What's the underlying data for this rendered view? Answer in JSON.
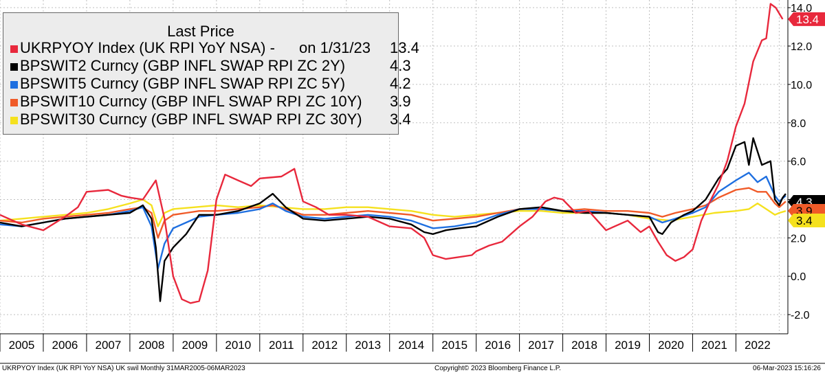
{
  "legend": {
    "header": "Last Price",
    "items": [
      {
        "label": "UKRPYOY Index (UK RPI YoY NSA) -",
        "date": "on 1/31/23",
        "value": "13.4",
        "color": "#e8283c"
      },
      {
        "label": "BPSWIT2 Curncy (GBP INFL SWAP RPI ZC 2Y)",
        "value": "4.3",
        "color": "#000000"
      },
      {
        "label": "BPSWIT5 Curncy (GBP INFL SWAP RPI ZC 5Y)",
        "value": "4.2",
        "color": "#1e6fe0"
      },
      {
        "label": "BPSWIT10 Curncy (GBP INFL SWAP RPI ZC 10Y)",
        "value": "3.9",
        "color": "#f05a28"
      },
      {
        "label": "BPSWIT30 Curncy (GBP INFL SWAP RPI ZC 30Y)",
        "value": "3.4",
        "color": "#f5e11e"
      }
    ]
  },
  "footer": {
    "left": "UKRPYOY Index (UK RPI YoY NSA) UK swil  Monthly 31MAR2005-06MAR2023",
    "center": "Copyright© 2023 Bloomberg Finance L.P.",
    "right": "06-Mar-2023 15:16:26"
  },
  "chart_data": {
    "type": "line",
    "xlim": [
      2005.0,
      2023.2
    ],
    "ylim": [
      -3.0,
      14.4
    ],
    "x_ticks": [
      "2005",
      "2006",
      "2007",
      "2008",
      "2009",
      "2010",
      "2011",
      "2012",
      "2013",
      "2014",
      "2015",
      "2016",
      "2017",
      "2018",
      "2019",
      "2020",
      "2021",
      "2022"
    ],
    "y_ticks": [
      "-2.0",
      "0.0",
      "2.0",
      "4.0",
      "6.0",
      "8.0",
      "10.0",
      "12.0",
      "14.0"
    ],
    "last_value_tags": [
      {
        "text": "13.4",
        "value": 13.4,
        "bg": "#e8283c",
        "fg": "#ffffff"
      },
      {
        "text": "4.3",
        "value": 4.3,
        "bg": "#000000",
        "fg": "#ffffff"
      },
      {
        "text": "3.9",
        "value": 3.9,
        "bg": "#f05a28",
        "fg": "#000000"
      },
      {
        "text": "3.4",
        "value": 3.4,
        "bg": "#f5e11e",
        "fg": "#000000"
      }
    ],
    "series": [
      {
        "name": "UKRPYOY Index (UK RPI YoY NSA)",
        "color": "#e8283c",
        "x": [
          2005.0,
          2005.5,
          2006.0,
          2006.5,
          2006.8,
          2007.0,
          2007.5,
          2007.8,
          2008.0,
          2008.3,
          2008.6,
          2008.8,
          2009.0,
          2009.2,
          2009.4,
          2009.6,
          2009.8,
          2010.0,
          2010.2,
          2010.5,
          2010.8,
          2011.0,
          2011.5,
          2011.8,
          2012.0,
          2012.3,
          2012.6,
          2013.0,
          2013.5,
          2014.0,
          2014.5,
          2014.8,
          2015.0,
          2015.3,
          2015.6,
          2015.9,
          2016.0,
          2016.3,
          2016.6,
          2016.8,
          2017.0,
          2017.3,
          2017.6,
          2017.8,
          2018.0,
          2018.3,
          2018.6,
          2019.0,
          2019.5,
          2019.8,
          2020.0,
          2020.2,
          2020.4,
          2020.6,
          2020.8,
          2021.0,
          2021.2,
          2021.4,
          2021.6,
          2021.8,
          2022.0,
          2022.2,
          2022.4,
          2022.6,
          2022.7,
          2022.8,
          2022.92,
          2023.08
        ],
        "y": [
          3.2,
          2.7,
          2.4,
          3.1,
          3.6,
          4.4,
          4.5,
          4.2,
          4.1,
          4.0,
          5.0,
          3.0,
          0.0,
          -1.2,
          -1.4,
          -1.3,
          0.3,
          4.0,
          5.3,
          5.0,
          4.7,
          5.1,
          5.2,
          5.6,
          3.9,
          3.6,
          3.2,
          3.2,
          3.1,
          2.6,
          2.5,
          2.0,
          1.1,
          0.9,
          1.0,
          1.1,
          1.3,
          1.6,
          1.8,
          2.2,
          2.6,
          3.1,
          3.9,
          4.1,
          4.0,
          3.3,
          3.4,
          2.4,
          2.9,
          2.3,
          2.6,
          1.8,
          1.1,
          0.8,
          1.0,
          1.4,
          2.9,
          3.9,
          4.8,
          6.0,
          7.8,
          9.0,
          11.2,
          12.3,
          12.4,
          14.2,
          14.0,
          13.4
        ]
      },
      {
        "name": "BPSWIT2 Curncy (GBP INFL SWAP RPI ZC 2Y)",
        "color": "#000000",
        "x": [
          2005.0,
          2005.5,
          2006.0,
          2006.5,
          2007.0,
          2007.5,
          2008.0,
          2008.3,
          2008.5,
          2008.6,
          2008.7,
          2008.8,
          2009.0,
          2009.3,
          2009.6,
          2010.0,
          2010.5,
          2011.0,
          2011.3,
          2011.6,
          2012.0,
          2012.5,
          2013.0,
          2013.5,
          2014.0,
          2014.5,
          2014.8,
          2015.0,
          2015.3,
          2015.6,
          2016.0,
          2016.5,
          2017.0,
          2017.5,
          2018.0,
          2018.5,
          2019.0,
          2019.5,
          2020.0,
          2020.2,
          2020.3,
          2020.5,
          2020.8,
          2021.0,
          2021.3,
          2021.6,
          2021.8,
          2022.0,
          2022.2,
          2022.3,
          2022.4,
          2022.6,
          2022.8,
          2022.9,
          2023.0,
          2023.08,
          2023.15
        ],
        "y": [
          2.8,
          2.6,
          2.8,
          3.0,
          3.1,
          3.2,
          3.3,
          3.7,
          3.0,
          1.5,
          -1.3,
          0.8,
          1.5,
          2.2,
          3.2,
          3.2,
          3.4,
          3.8,
          4.3,
          3.6,
          3.0,
          2.9,
          3.0,
          3.1,
          3.0,
          2.7,
          2.3,
          2.2,
          2.4,
          2.5,
          2.6,
          3.1,
          3.5,
          3.6,
          3.4,
          3.3,
          3.3,
          3.2,
          3.1,
          2.3,
          2.2,
          2.8,
          3.2,
          3.4,
          4.0,
          5.1,
          5.6,
          6.8,
          7.0,
          5.8,
          7.2,
          5.8,
          6.0,
          4.0,
          3.7,
          4.1,
          4.3
        ]
      },
      {
        "name": "BPSWIT5 Curncy (GBP INFL SWAP RPI ZC 5Y)",
        "color": "#1e6fe0",
        "x": [
          2005.0,
          2005.5,
          2006.0,
          2006.5,
          2007.0,
          2007.5,
          2008.0,
          2008.3,
          2008.5,
          2008.65,
          2008.8,
          2009.0,
          2009.3,
          2009.6,
          2010.0,
          2010.5,
          2011.0,
          2011.3,
          2011.6,
          2012.0,
          2012.5,
          2013.0,
          2013.5,
          2014.0,
          2014.5,
          2015.0,
          2015.5,
          2016.0,
          2016.5,
          2017.0,
          2017.5,
          2018.0,
          2018.5,
          2019.0,
          2019.5,
          2020.0,
          2020.3,
          2020.6,
          2021.0,
          2021.3,
          2021.6,
          2022.0,
          2022.3,
          2022.5,
          2022.7,
          2022.9,
          2023.0,
          2023.15
        ],
        "y": [
          2.7,
          2.6,
          2.8,
          3.0,
          3.1,
          3.2,
          3.4,
          3.6,
          2.6,
          0.4,
          1.7,
          2.5,
          2.8,
          3.1,
          3.2,
          3.3,
          3.5,
          3.8,
          3.4,
          3.1,
          3.0,
          3.1,
          3.2,
          3.1,
          2.9,
          2.5,
          2.6,
          2.8,
          3.2,
          3.5,
          3.5,
          3.4,
          3.4,
          3.3,
          3.2,
          3.1,
          2.8,
          3.0,
          3.3,
          3.6,
          4.4,
          5.0,
          5.4,
          4.9,
          5.2,
          4.2,
          3.9,
          4.2
        ]
      },
      {
        "name": "BPSWIT10 Curncy (GBP INFL SWAP RPI ZC 10Y)",
        "color": "#f05a28",
        "x": [
          2005.0,
          2005.5,
          2006.0,
          2006.5,
          2007.0,
          2007.5,
          2008.0,
          2008.3,
          2008.5,
          2008.65,
          2008.8,
          2009.0,
          2009.3,
          2009.6,
          2010.0,
          2010.5,
          2011.0,
          2011.3,
          2011.6,
          2012.0,
          2012.5,
          2013.0,
          2013.5,
          2014.0,
          2014.5,
          2015.0,
          2015.5,
          2016.0,
          2016.5,
          2017.0,
          2017.5,
          2018.0,
          2018.5,
          2019.0,
          2019.5,
          2020.0,
          2020.3,
          2020.6,
          2021.0,
          2021.3,
          2021.6,
          2022.0,
          2022.3,
          2022.5,
          2022.7,
          2022.9,
          2023.0,
          2023.15
        ],
        "y": [
          2.9,
          2.8,
          3.0,
          3.1,
          3.2,
          3.3,
          3.5,
          3.6,
          3.3,
          2.0,
          2.9,
          3.2,
          3.3,
          3.4,
          3.4,
          3.5,
          3.6,
          3.7,
          3.5,
          3.2,
          3.2,
          3.3,
          3.4,
          3.3,
          3.2,
          2.9,
          3.0,
          3.1,
          3.3,
          3.5,
          3.5,
          3.4,
          3.5,
          3.4,
          3.4,
          3.3,
          3.1,
          3.3,
          3.5,
          3.7,
          4.1,
          4.5,
          4.6,
          4.4,
          4.4,
          3.8,
          3.6,
          3.9
        ]
      },
      {
        "name": "BPSWIT30 Curncy (GBP INFL SWAP RPI ZC 30Y)",
        "color": "#f5e11e",
        "x": [
          2005.0,
          2005.5,
          2006.0,
          2006.5,
          2007.0,
          2007.5,
          2008.0,
          2008.3,
          2008.5,
          2008.65,
          2008.8,
          2009.0,
          2009.5,
          2010.0,
          2010.5,
          2011.0,
          2011.5,
          2012.0,
          2012.5,
          2013.0,
          2013.5,
          2014.0,
          2014.5,
          2015.0,
          2015.5,
          2016.0,
          2016.5,
          2017.0,
          2017.5,
          2018.0,
          2018.5,
          2019.0,
          2019.5,
          2020.0,
          2020.5,
          2021.0,
          2021.5,
          2022.0,
          2022.3,
          2022.5,
          2022.7,
          2022.9,
          2023.0,
          2023.15
        ],
        "y": [
          2.9,
          3.0,
          3.1,
          3.2,
          3.3,
          3.5,
          3.8,
          4.0,
          3.7,
          2.6,
          3.3,
          3.5,
          3.6,
          3.7,
          3.6,
          3.7,
          3.6,
          3.5,
          3.5,
          3.6,
          3.6,
          3.5,
          3.4,
          3.2,
          3.1,
          3.2,
          3.3,
          3.4,
          3.4,
          3.3,
          3.3,
          3.3,
          3.2,
          3.0,
          2.9,
          3.1,
          3.3,
          3.4,
          3.5,
          3.8,
          3.5,
          3.2,
          3.3,
          3.4
        ]
      }
    ]
  }
}
